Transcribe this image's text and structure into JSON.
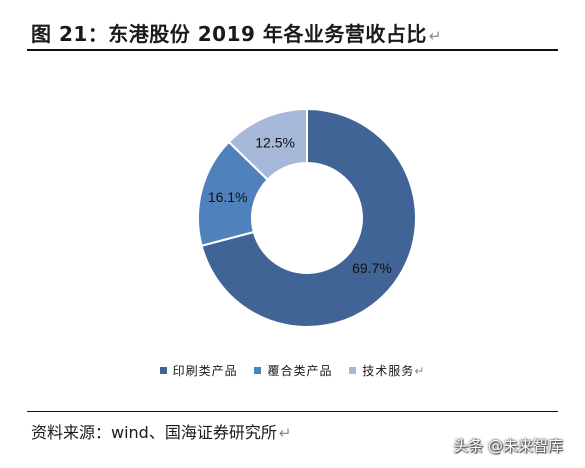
{
  "title": {
    "text": "图 21：东港股份 2019 年各业务营收占比",
    "return_mark": "↵"
  },
  "chart_data": {
    "type": "pie",
    "donut": true,
    "labels": [
      "印刷类产品",
      "覆合类产品",
      "技术服务"
    ],
    "values": [
      69.7,
      16.1,
      12.5
    ],
    "value_labels": [
      "69.7%",
      "16.1%",
      "12.5%"
    ],
    "colors": [
      "#416496",
      "#4f81bd",
      "#a7b9d9"
    ],
    "legend_position": "bottom"
  },
  "legend": {
    "items": [
      {
        "label": "印刷类产品",
        "color": "#416496"
      },
      {
        "label": "覆合类产品",
        "color": "#4f81bd"
      },
      {
        "label": "技术服务",
        "color": "#a7b9d9"
      }
    ],
    "return_mark": "↵"
  },
  "source": {
    "text": "资料来源：wind、国海证券研究所",
    "return_mark": "↵"
  },
  "watermark": {
    "text": "头条 @未来智库"
  }
}
